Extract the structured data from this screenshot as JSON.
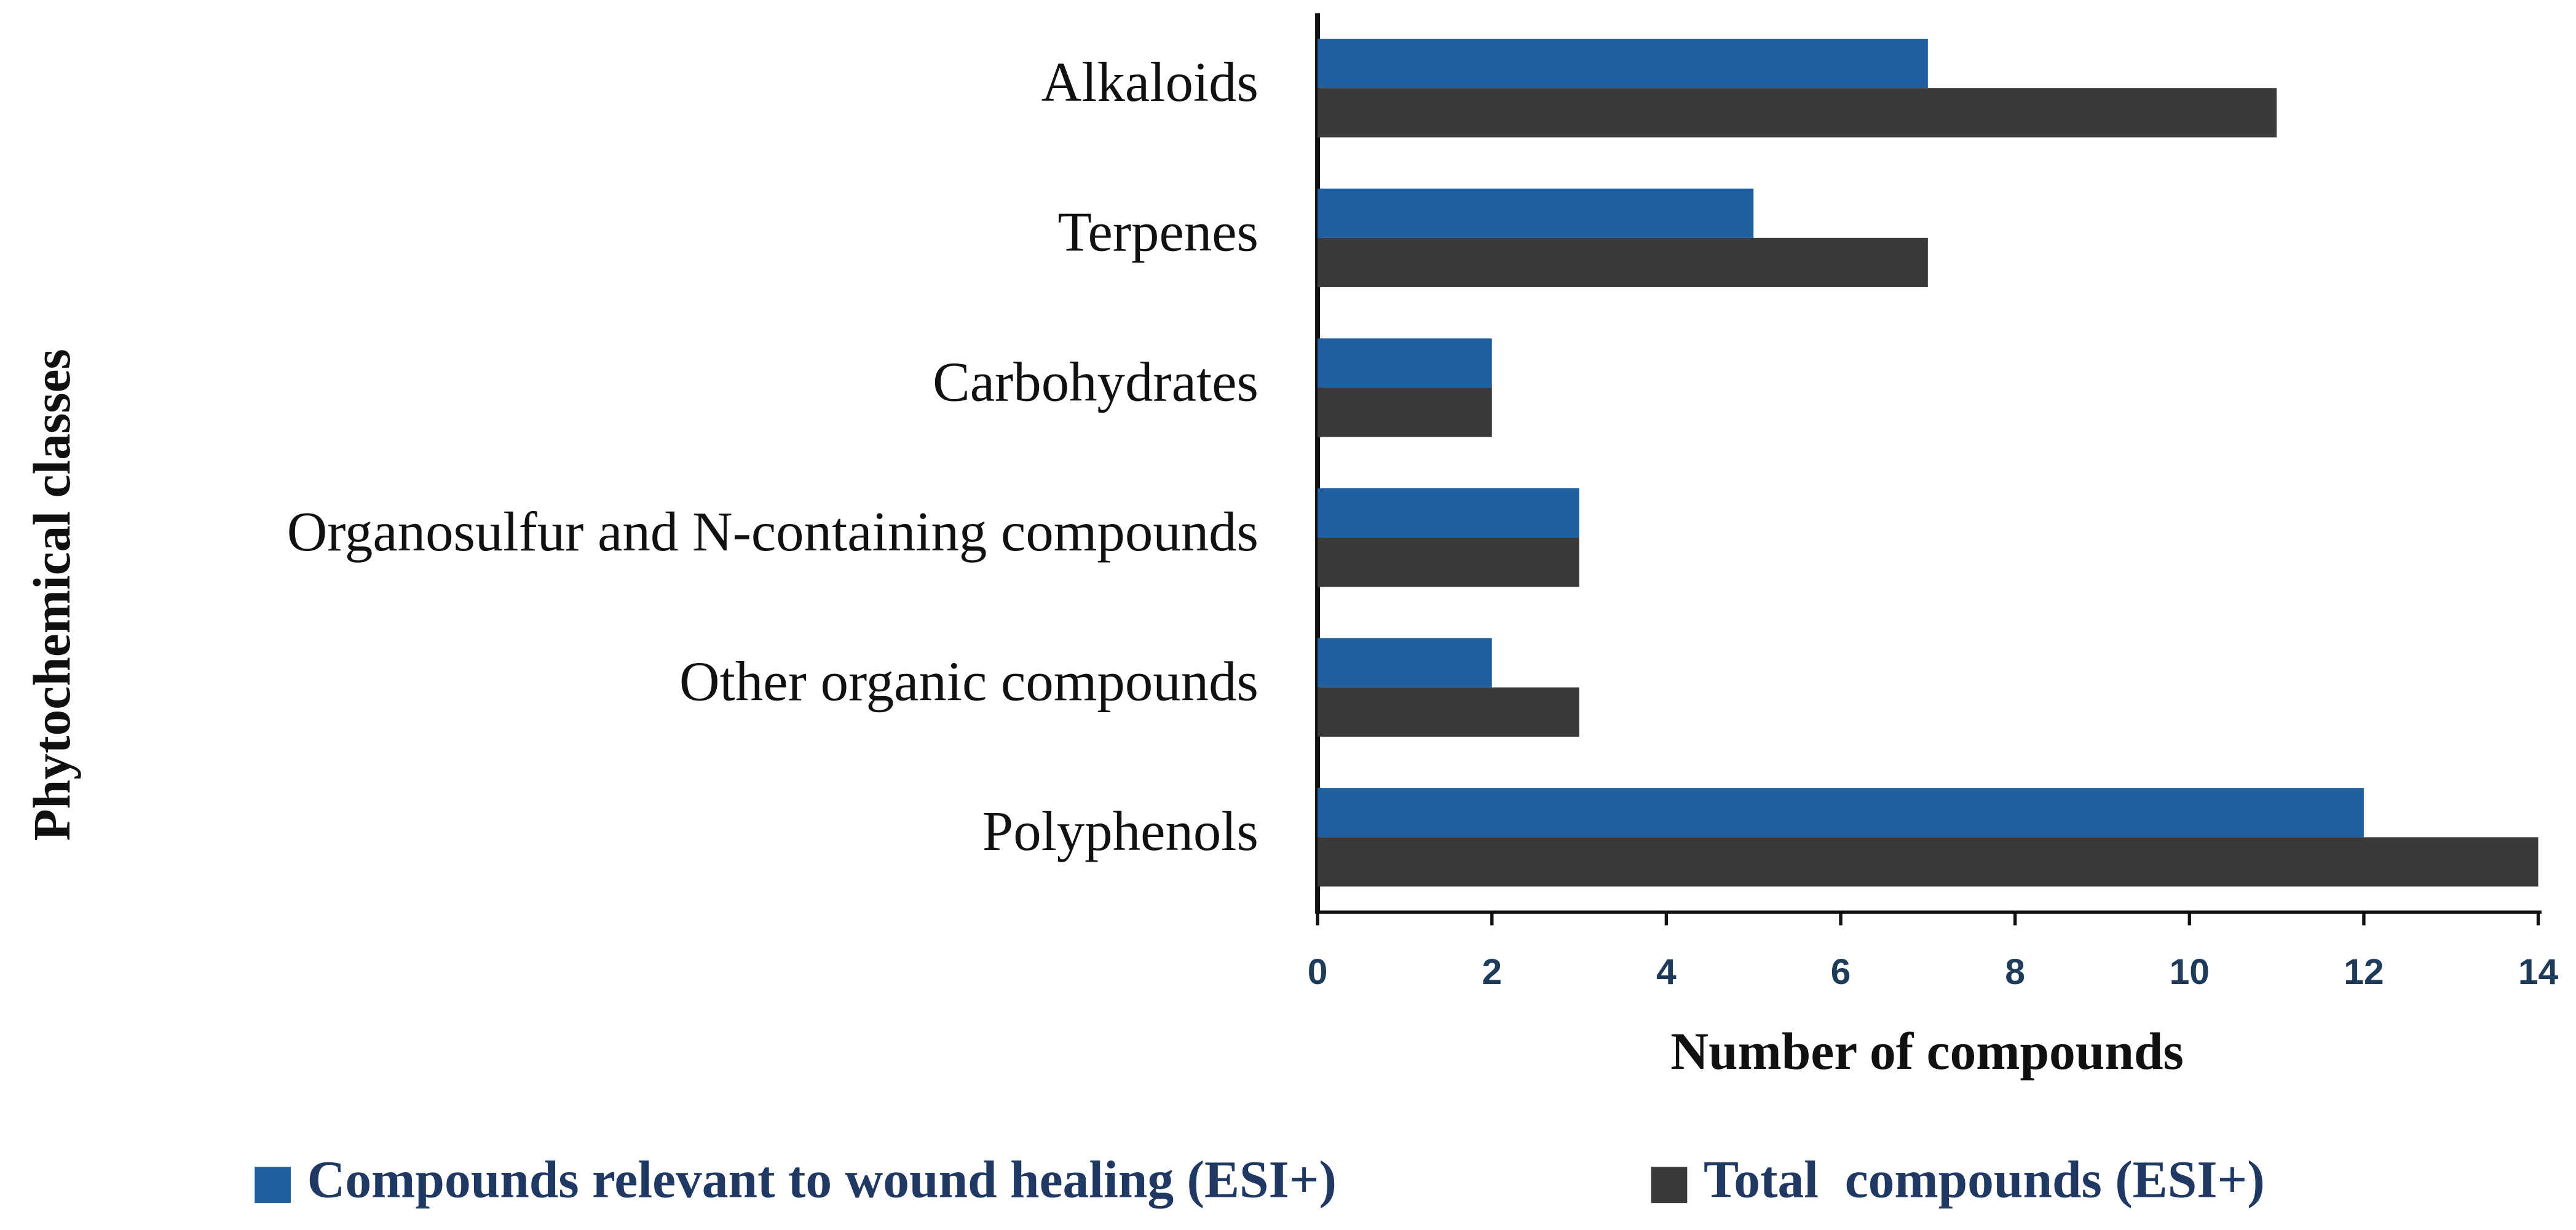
{
  "chart_data": {
    "type": "bar",
    "orientation": "horizontal",
    "categories": [
      "Alkaloids",
      "Terpenes",
      "Carbohydrates",
      "Organosulfur and N-containing compounds",
      "Other organic compounds",
      "Polyphenols"
    ],
    "series": [
      {
        "name": "Compounds relevant to wound healing (ESI+)",
        "color": "#2160a0",
        "values": [
          7,
          5,
          2,
          3,
          2,
          12
        ]
      },
      {
        "name": "Total  compounds (ESI+)",
        "color": "#3a3a3a",
        "values": [
          11,
          7,
          2,
          3,
          3,
          14
        ]
      }
    ],
    "x_label": "Number of compounds",
    "y_label": "Phytochemical classes",
    "xlim": [
      0,
      14
    ],
    "xticks": [
      0,
      2,
      4,
      6,
      8,
      10,
      12,
      14
    ],
    "legend": "bottom"
  }
}
